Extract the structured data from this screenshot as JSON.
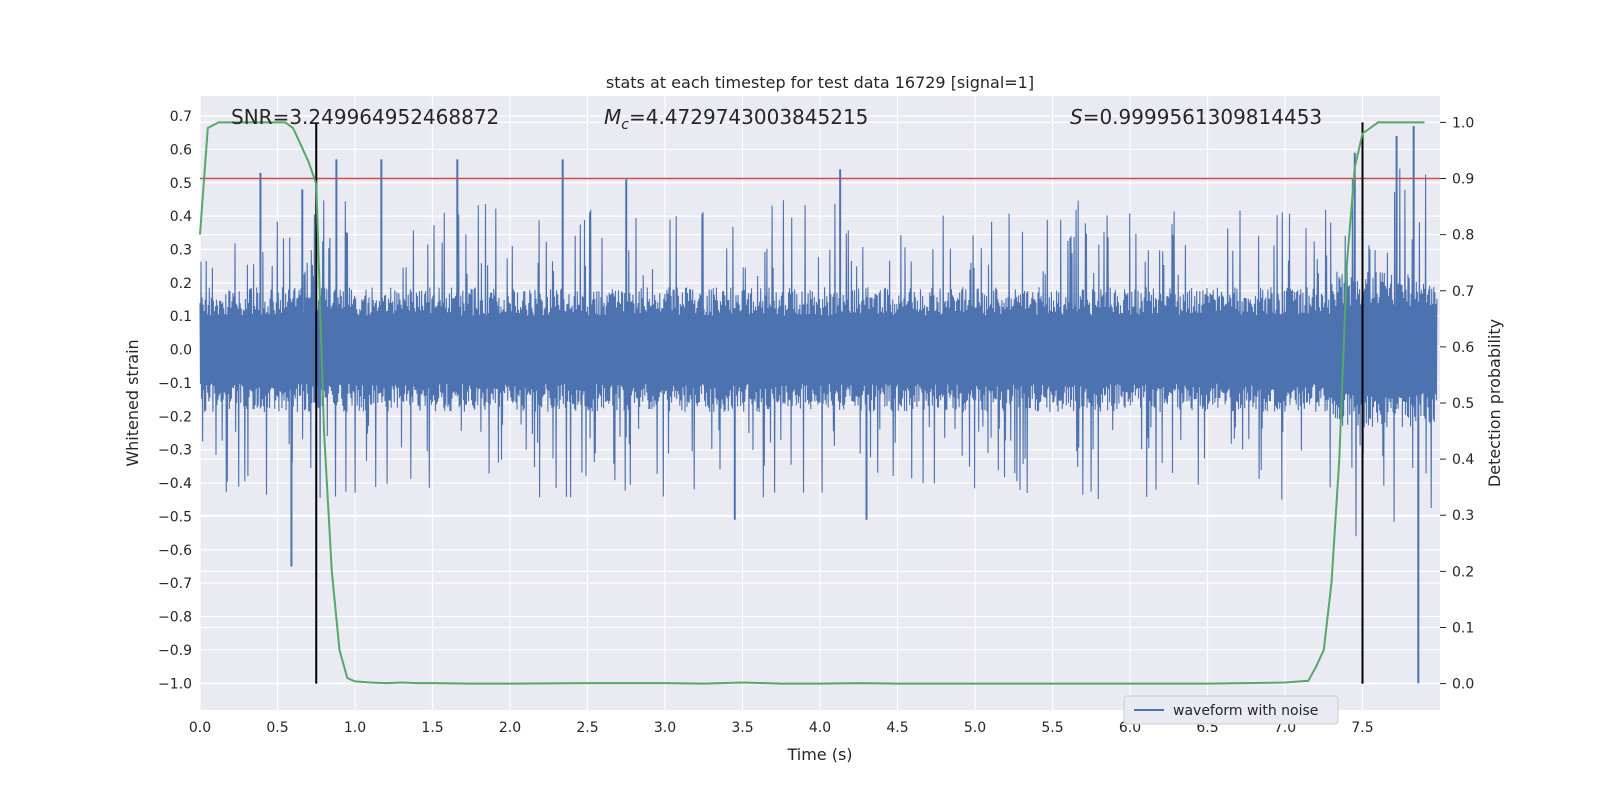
{
  "chart_data": {
    "type": "line",
    "title": "stats at each timestep for test data 16729 [signal=1]",
    "xlabel": "Time (s)",
    "ylabel": "Whitened strain",
    "y2label": "Detection probability",
    "xlim": [
      0.0,
      8.0
    ],
    "ylim": [
      -1.08,
      0.76
    ],
    "y2lim": [
      -0.047,
      1.047
    ],
    "xticks": [
      "0.0",
      "0.5",
      "1.0",
      "1.5",
      "2.0",
      "2.5",
      "3.0",
      "3.5",
      "4.0",
      "4.5",
      "5.0",
      "5.5",
      "6.0",
      "6.5",
      "7.0",
      "7.5"
    ],
    "xtick_values": [
      0,
      0.5,
      1,
      1.5,
      2,
      2.5,
      3,
      3.5,
      4,
      4.5,
      5,
      5.5,
      6,
      6.5,
      7,
      7.5
    ],
    "yticks": [
      "0.7",
      "0.6",
      "0.5",
      "0.4",
      "0.3",
      "0.2",
      "0.1",
      "0.0",
      "−0.1",
      "−0.2",
      "−0.3",
      "−0.4",
      "−0.5",
      "−0.6",
      "−0.7",
      "−0.8",
      "−0.9",
      "−1.0"
    ],
    "ytick_values": [
      0.7,
      0.6,
      0.5,
      0.4,
      0.3,
      0.2,
      0.1,
      0,
      -0.1,
      -0.2,
      -0.3,
      -0.4,
      -0.5,
      -0.6,
      -0.7,
      -0.8,
      -0.9,
      -1.0
    ],
    "y2ticks": [
      "1.0",
      "0.9",
      "0.8",
      "0.7",
      "0.6",
      "0.5",
      "0.4",
      "0.3",
      "0.2",
      "0.1",
      "0.0"
    ],
    "y2tick_values": [
      1.0,
      0.9,
      0.8,
      0.7,
      0.6,
      0.5,
      0.4,
      0.3,
      0.2,
      0.1,
      0.0
    ],
    "grid": true,
    "legend_position": "lower-right",
    "annotations": [
      {
        "key": "snr",
        "prefix": "SNR",
        "italic": false,
        "subscript": "",
        "text": "=3.249964952468872"
      },
      {
        "key": "mc",
        "prefix": "M",
        "italic": true,
        "subscript": "c",
        "text": "=4.4729743003845215"
      },
      {
        "key": "s",
        "prefix": "S",
        "italic": true,
        "subscript": "",
        "text": "=0.9999561309814453"
      }
    ],
    "series": [
      {
        "name": "waveform with noise",
        "color": "#4c72b0",
        "noise_envelope": {
          "core_amplitude": 0.17,
          "typical_peak_upper": [
            0.22,
            0.45
          ],
          "typical_peak_lower": [
            -0.22,
            -0.45
          ]
        },
        "notable_peaks": [
          {
            "x": 0.39,
            "y": 0.53
          },
          {
            "x": 0.59,
            "y": -0.65
          },
          {
            "x": 0.66,
            "y": 0.48
          },
          {
            "x": 0.88,
            "y": 0.57
          },
          {
            "x": 1.17,
            "y": 0.57
          },
          {
            "x": 1.66,
            "y": 0.57
          },
          {
            "x": 2.34,
            "y": 0.57
          },
          {
            "x": 2.75,
            "y": 0.51
          },
          {
            "x": 3.45,
            "y": -0.51
          },
          {
            "x": 4.13,
            "y": 0.54
          },
          {
            "x": 4.3,
            "y": -0.51
          },
          {
            "x": 7.45,
            "y": 0.59
          },
          {
            "x": 7.72,
            "y": 0.64
          },
          {
            "x": 7.83,
            "y": 0.67
          },
          {
            "x": 7.86,
            "y": -1.0
          }
        ]
      },
      {
        "name": "",
        "color": "#55a868",
        "axis": "right",
        "x": [
          0.0,
          0.05,
          0.12,
          0.2,
          0.3,
          0.4,
          0.5,
          0.55,
          0.6,
          0.65,
          0.7,
          0.75,
          0.8,
          0.85,
          0.9,
          0.95,
          1.0,
          1.1,
          1.2,
          1.3,
          1.4,
          1.5,
          1.75,
          2.0,
          2.5,
          3.0,
          3.25,
          3.5,
          3.75,
          4.0,
          4.25,
          4.5,
          5.0,
          5.5,
          6.0,
          6.5,
          7.0,
          7.15,
          7.2,
          7.25,
          7.3,
          7.35,
          7.4,
          7.45,
          7.5,
          7.55,
          7.6,
          7.7,
          7.8,
          7.9
        ],
        "y": [
          0.8,
          0.99,
          1.0,
          1.0,
          1.0,
          1.0,
          1.0,
          1.0,
          0.99,
          0.96,
          0.93,
          0.89,
          0.45,
          0.2,
          0.06,
          0.01,
          0.004,
          0.002,
          0.001,
          0.002,
          0.001,
          0.001,
          0.0,
          0.0,
          0.001,
          0.001,
          0.0,
          0.002,
          0.0,
          0.0,
          0.001,
          0.0,
          0.0,
          0.0,
          0.0,
          0.0,
          0.002,
          0.005,
          0.03,
          0.06,
          0.18,
          0.4,
          0.75,
          0.92,
          0.98,
          0.99,
          1.0,
          1.0,
          1.0,
          1.0
        ]
      }
    ],
    "threshold_line": {
      "axis": "right",
      "y": 0.9,
      "color": "#c44e52"
    },
    "vertical_lines": [
      {
        "x": 0.75
      },
      {
        "x": 7.5
      }
    ],
    "colors": {
      "axes_bg": "#eaeaf2",
      "grid": "#ffffff",
      "waveform": "#4c72b0",
      "probability": "#55a868",
      "threshold": "#c44e52",
      "vline": "#000000"
    }
  }
}
